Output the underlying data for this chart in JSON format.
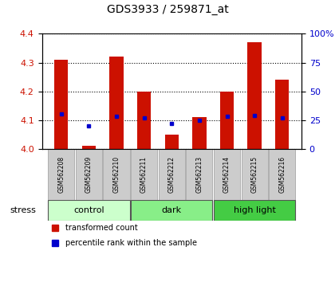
{
  "title": "GDS3933 / 259871_at",
  "samples": [
    "GSM562208",
    "GSM562209",
    "GSM562210",
    "GSM562211",
    "GSM562212",
    "GSM562213",
    "GSM562214",
    "GSM562215",
    "GSM562216"
  ],
  "transformed_counts": [
    4.31,
    4.01,
    4.32,
    4.2,
    4.05,
    4.11,
    4.2,
    4.37,
    4.24
  ],
  "percentile_ranks": [
    30,
    20,
    28,
    27,
    22,
    25,
    28,
    29,
    27
  ],
  "bar_bottom": 4.0,
  "ylim": [
    4.0,
    4.4
  ],
  "yticks": [
    4.0,
    4.1,
    4.2,
    4.3,
    4.4
  ],
  "right_yticks": [
    0,
    25,
    50,
    75,
    100
  ],
  "right_ylim": [
    0,
    100
  ],
  "bar_color": "#cc1100",
  "dot_color": "#0000cc",
  "groups": [
    {
      "label": "control",
      "start": 0,
      "end": 3,
      "color": "#ccffcc"
    },
    {
      "label": "dark",
      "start": 3,
      "end": 6,
      "color": "#88ee88"
    },
    {
      "label": "high light",
      "start": 6,
      "end": 9,
      "color": "#44cc44"
    }
  ],
  "stress_label": "stress",
  "legend_tc": "transformed count",
  "legend_pr": "percentile rank within the sample",
  "bar_width": 0.5,
  "tick_label_color_left": "#cc1100",
  "tick_label_color_right": "#0000cc",
  "background_color": "#ffffff"
}
